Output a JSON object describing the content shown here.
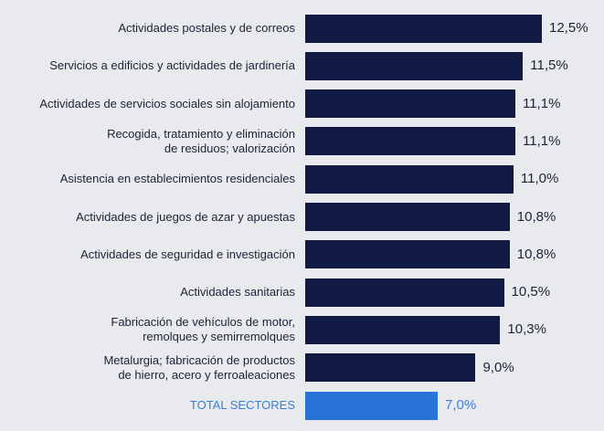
{
  "chart_data": {
    "type": "bar",
    "orientation": "horizontal",
    "categories": [
      "Actividades postales y de correos",
      "Servicios a edificios y actividades de jardinería",
      "Actividades de servicios sociales sin alojamiento",
      "Recogida, tratamiento y eliminación\nde residuos; valorización",
      "Asistencia en establecimientos residenciales",
      "Actividades de juegos de azar y apuestas",
      "Actividades de seguridad e investigación",
      "Actividades sanitarias",
      "Fabricación de vehículos de motor,\nremolques y semirremolques",
      "Metalurgia; fabricación de productos\nde hierro, acero y ferroaleaciones",
      "TOTAL SECTORES"
    ],
    "values": [
      12.5,
      11.5,
      11.1,
      11.1,
      11.0,
      10.8,
      10.8,
      10.5,
      10.3,
      9.0,
      7.0
    ],
    "value_labels": [
      "12,5%",
      "11,5%",
      "11,1%",
      "11,1%",
      "11,0%",
      "10,8%",
      "10,8%",
      "10,5%",
      "10,3%",
      "9,0%",
      "7,0%"
    ],
    "highlight_index": 10,
    "title": "",
    "xlabel": "",
    "ylabel": "",
    "xlim": [
      0,
      12.5
    ],
    "grid": false,
    "colors": {
      "bar": "#111a45",
      "highlight": "#2874d6",
      "highlight_text": "#3b7fd0",
      "background": "#e9eaee"
    }
  }
}
